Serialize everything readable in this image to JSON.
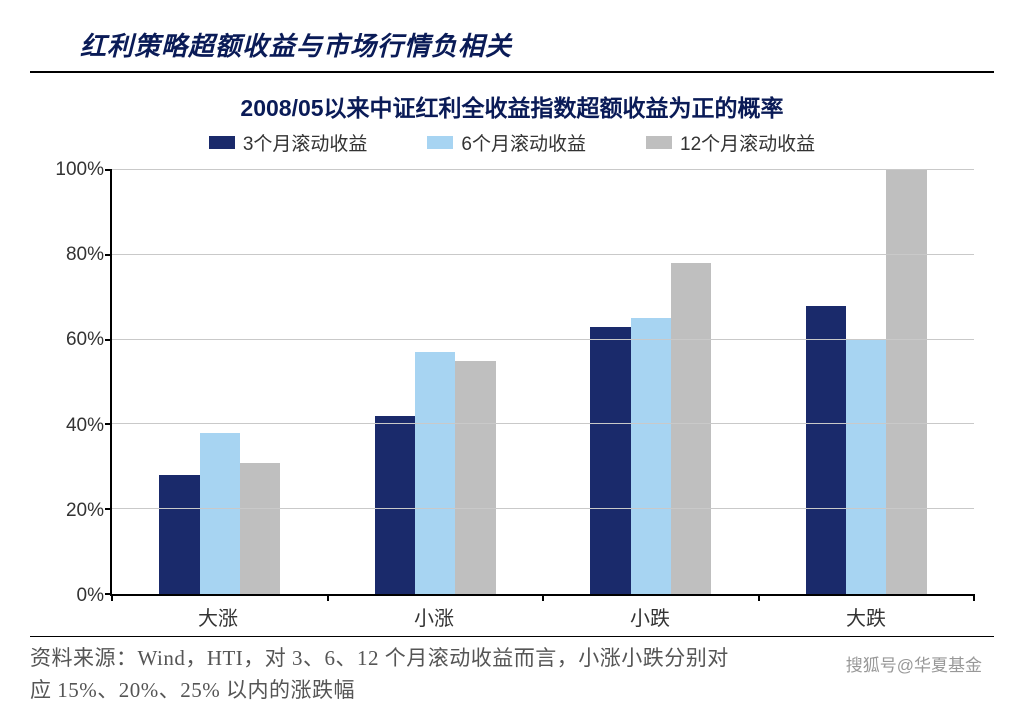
{
  "header": {
    "title": "红利策略超额收益与市场行情负相关"
  },
  "chart": {
    "type": "bar",
    "title": "2008/05以来中证红利全收益指数超额收益为正的概率",
    "legend": {
      "items": [
        {
          "label": "3个月滚动收益",
          "color": "#1a2a6b"
        },
        {
          "label": "6个月滚动收益",
          "color": "#a7d4f2"
        },
        {
          "label": "12个月滚动收益",
          "color": "#bfbfbf"
        }
      ]
    },
    "categories": [
      "大涨",
      "小涨",
      "小跌",
      "大跌"
    ],
    "series": [
      {
        "name": "3m",
        "color": "#1a2a6b",
        "values": [
          28,
          42,
          63,
          68
        ]
      },
      {
        "name": "6m",
        "color": "#a7d4f2",
        "values": [
          38,
          57,
          65,
          60
        ]
      },
      {
        "name": "12m",
        "color": "#bfbfbf",
        "values": [
          31,
          55,
          78,
          100
        ]
      }
    ],
    "ylim": [
      0,
      100
    ],
    "ytick_step": 20,
    "yticks": [
      "0%",
      "20%",
      "40%",
      "60%",
      "80%",
      "100%"
    ],
    "grid_color": "#c9c9c9",
    "axis_color": "#000000",
    "background_color": "#ffffff",
    "title_fontsize": 23,
    "label_fontsize": 19,
    "bar_gap": 0,
    "group_padding_pct": 22
  },
  "source": {
    "line1": "资料来源：Wind，HTI，对 3、6、12 个月滚动收益而言，小涨小跌分别对",
    "line2": "应 15%、20%、25% 以内的涨跌幅"
  },
  "watermark": "搜狐号@华夏基金"
}
